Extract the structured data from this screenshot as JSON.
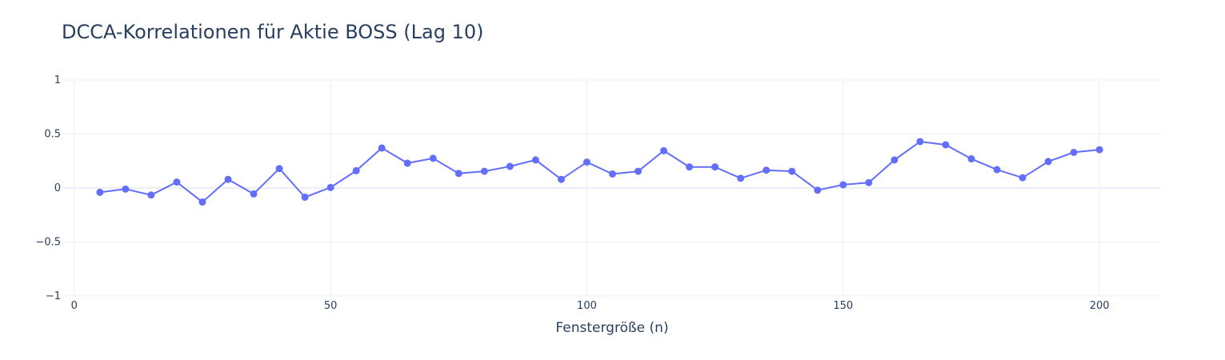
{
  "chart_data": {
    "type": "line",
    "title": "DCCA-Korrelationen für Aktie BOSS (Lag 10)",
    "xlabel": "Fenstergröße (n)",
    "ylabel": "",
    "xlim": [
      -2,
      212
    ],
    "ylim": [
      -1,
      1
    ],
    "xticks": [
      0,
      50,
      100,
      150,
      200
    ],
    "xtick_labels": [
      "0",
      "50",
      "100",
      "150",
      "200"
    ],
    "yticks": [
      1,
      0.5,
      0,
      -0.5,
      -1
    ],
    "ytick_labels": [
      "1",
      "0.5",
      "0",
      "−0.5",
      "−1"
    ],
    "grid": true,
    "legend": "none",
    "colors": {
      "line": "#636efa",
      "grid": "#ebf0f8",
      "text": "#2a3f5f"
    },
    "series": [
      {
        "x": [
          5,
          10,
          15,
          20,
          25,
          30,
          35,
          40,
          45,
          50,
          55,
          60,
          65,
          70,
          75,
          80,
          85,
          90,
          95,
          100,
          105,
          110,
          115,
          120,
          125,
          130,
          135,
          140,
          145,
          150,
          155,
          160,
          165,
          170,
          175,
          180,
          185,
          190,
          195,
          200
        ],
        "y": [
          -0.04,
          -0.01,
          -0.065,
          0.055,
          -0.13,
          0.08,
          -0.055,
          0.18,
          -0.085,
          0.005,
          0.16,
          0.37,
          0.23,
          0.275,
          0.135,
          0.155,
          0.2,
          0.26,
          0.08,
          0.24,
          0.13,
          0.155,
          0.345,
          0.195,
          0.195,
          0.09,
          0.165,
          0.155,
          -0.02,
          0.03,
          0.05,
          0.26,
          0.43,
          0.4,
          0.27,
          0.17,
          0.095,
          0.245,
          0.33,
          0.355
        ]
      }
    ]
  }
}
